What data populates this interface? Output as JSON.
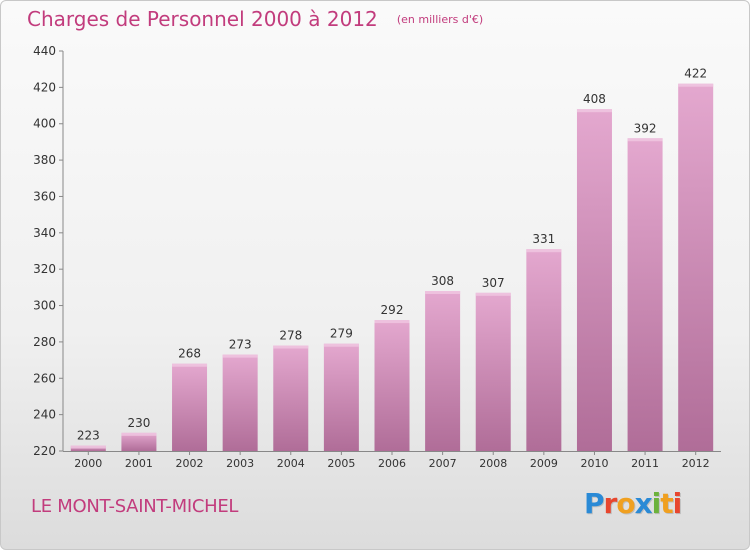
{
  "header": {
    "title": "Charges de Personnel 2000 à 2012",
    "subtitle": "(en milliers d'€)"
  },
  "footer": {
    "city": "LE MONT-SAINT-MICHEL",
    "logo_text": "Proxiti",
    "logo_colors": [
      "#2a8ad6",
      "#e8462e",
      "#f0a020",
      "#2a8ad6",
      "#6cb23c",
      "#f0a020",
      "#e8462e"
    ]
  },
  "colors": {
    "accent": "#c23c7d",
    "bar_top": "#e4a8cf",
    "bar_bottom": "#b06d98"
  },
  "chart_data": {
    "type": "bar",
    "categories": [
      "2000",
      "2001",
      "2002",
      "2003",
      "2004",
      "2005",
      "2006",
      "2007",
      "2008",
      "2009",
      "2010",
      "2011",
      "2012"
    ],
    "values": [
      223,
      230,
      268,
      273,
      278,
      279,
      292,
      308,
      307,
      331,
      408,
      392,
      422
    ],
    "title": "Charges de Personnel 2000 à 2012",
    "subtitle": "(en milliers d'€)",
    "xlabel": "",
    "ylabel": "",
    "ylim": [
      220,
      440
    ],
    "yticks": [
      220,
      240,
      260,
      280,
      300,
      320,
      340,
      360,
      380,
      400,
      420,
      440
    ],
    "grid": false,
    "legend": "none"
  }
}
